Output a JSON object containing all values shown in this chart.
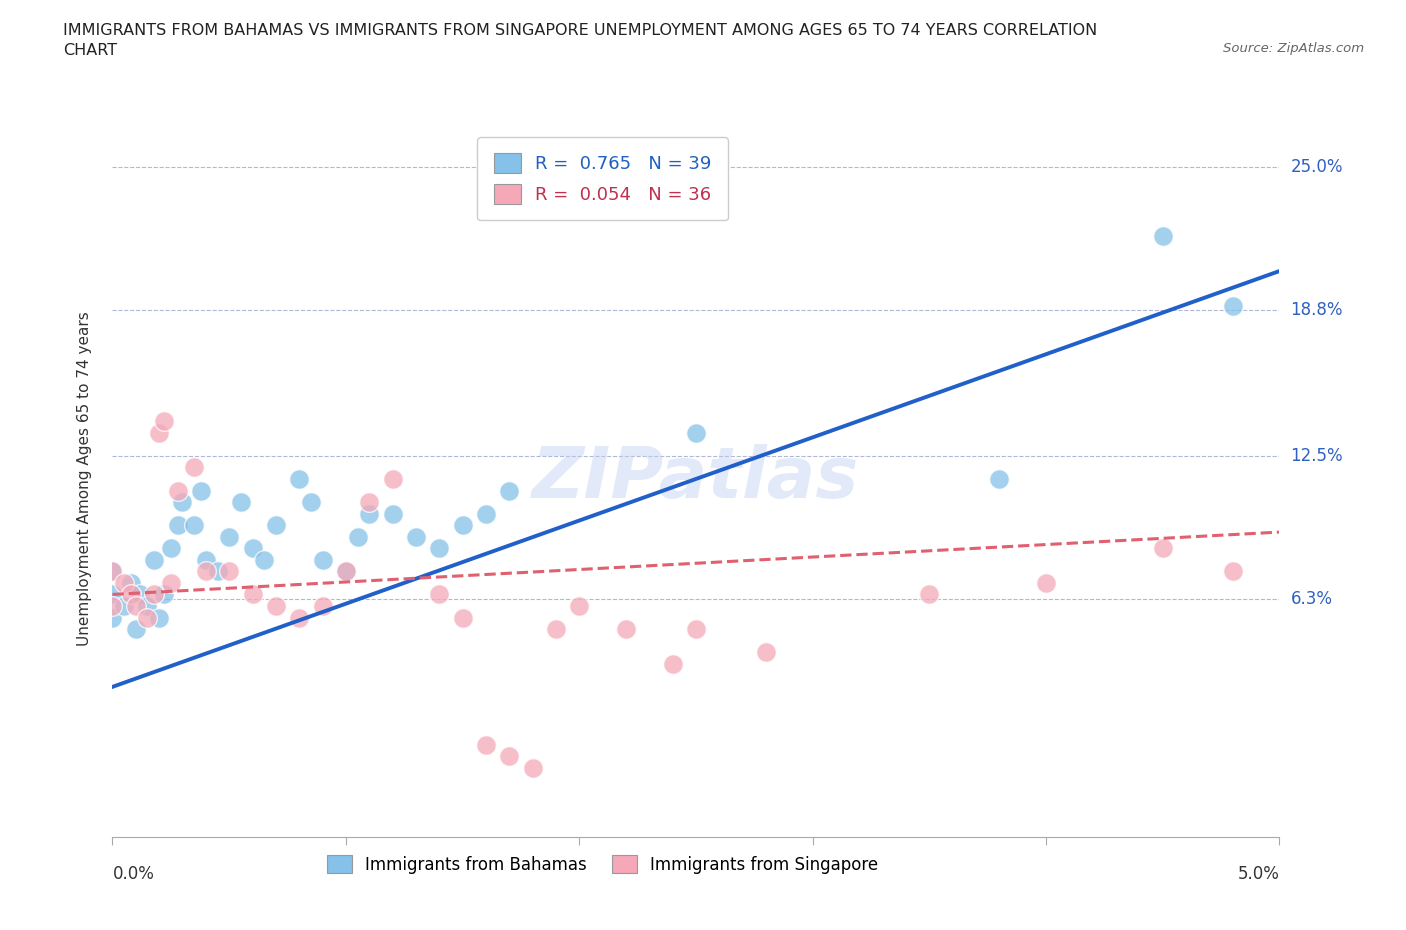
{
  "title": "IMMIGRANTS FROM BAHAMAS VS IMMIGRANTS FROM SINGAPORE UNEMPLOYMENT AMONG AGES 65 TO 74 YEARS CORRELATION\nCHART",
  "source": "Source: ZipAtlas.com",
  "ylabel": "Unemployment Among Ages 65 to 74 years",
  "watermark": "ZIPatlas",
  "legend_r1": "R =  0.765   N = 39",
  "legend_r2": "R =  0.054   N = 36",
  "color_bahamas": "#85c1e8",
  "color_singapore": "#f4a8b8",
  "color_bahamas_line": "#2060c8",
  "color_singapore_line": "#e06070",
  "xlim": [
    0.0,
    5.0
  ],
  "ylim": [
    -4.0,
    27.0
  ],
  "yticks": [
    6.3,
    12.5,
    18.8,
    25.0
  ],
  "ytick_labels": [
    "6.3%",
    "12.5%",
    "18.8%",
    "25.0%"
  ],
  "bahamas_scatter_x": [
    0.0,
    0.0,
    0.0,
    0.05,
    0.08,
    0.1,
    0.12,
    0.15,
    0.18,
    0.2,
    0.22,
    0.25,
    0.28,
    0.3,
    0.35,
    0.38,
    0.4,
    0.45,
    0.5,
    0.55,
    0.6,
    0.65,
    0.7,
    0.8,
    0.85,
    0.9,
    1.0,
    1.05,
    1.1,
    1.2,
    1.3,
    1.4,
    1.5,
    1.6,
    1.7,
    2.5,
    3.8,
    4.5,
    4.8
  ],
  "bahamas_scatter_y": [
    6.5,
    7.5,
    5.5,
    6.0,
    7.0,
    5.0,
    6.5,
    6.0,
    8.0,
    5.5,
    6.5,
    8.5,
    9.5,
    10.5,
    9.5,
    11.0,
    8.0,
    7.5,
    9.0,
    10.5,
    8.5,
    8.0,
    9.5,
    11.5,
    10.5,
    8.0,
    7.5,
    9.0,
    10.0,
    10.0,
    9.0,
    8.5,
    9.5,
    10.0,
    11.0,
    13.5,
    11.5,
    22.0,
    19.0
  ],
  "singapore_scatter_x": [
    0.0,
    0.0,
    0.05,
    0.08,
    0.1,
    0.15,
    0.18,
    0.2,
    0.22,
    0.25,
    0.28,
    0.35,
    0.4,
    0.5,
    0.6,
    0.7,
    0.8,
    0.9,
    1.0,
    1.1,
    1.2,
    1.4,
    1.5,
    1.6,
    1.7,
    1.8,
    1.9,
    2.0,
    2.2,
    2.4,
    2.5,
    2.8,
    3.5,
    4.0,
    4.5,
    4.8
  ],
  "singapore_scatter_y": [
    6.0,
    7.5,
    7.0,
    6.5,
    6.0,
    5.5,
    6.5,
    13.5,
    14.0,
    7.0,
    11.0,
    12.0,
    7.5,
    7.5,
    6.5,
    6.0,
    5.5,
    6.0,
    7.5,
    10.5,
    11.5,
    6.5,
    5.5,
    0.0,
    -0.5,
    -1.0,
    5.0,
    6.0,
    5.0,
    3.5,
    5.0,
    4.0,
    6.5,
    7.0,
    8.5,
    7.5
  ],
  "bahamas_line_x": [
    0.0,
    5.0
  ],
  "bahamas_line_y": [
    2.5,
    20.5
  ],
  "singapore_line_x": [
    0.0,
    5.0
  ],
  "singapore_line_y": [
    6.5,
    9.2
  ]
}
